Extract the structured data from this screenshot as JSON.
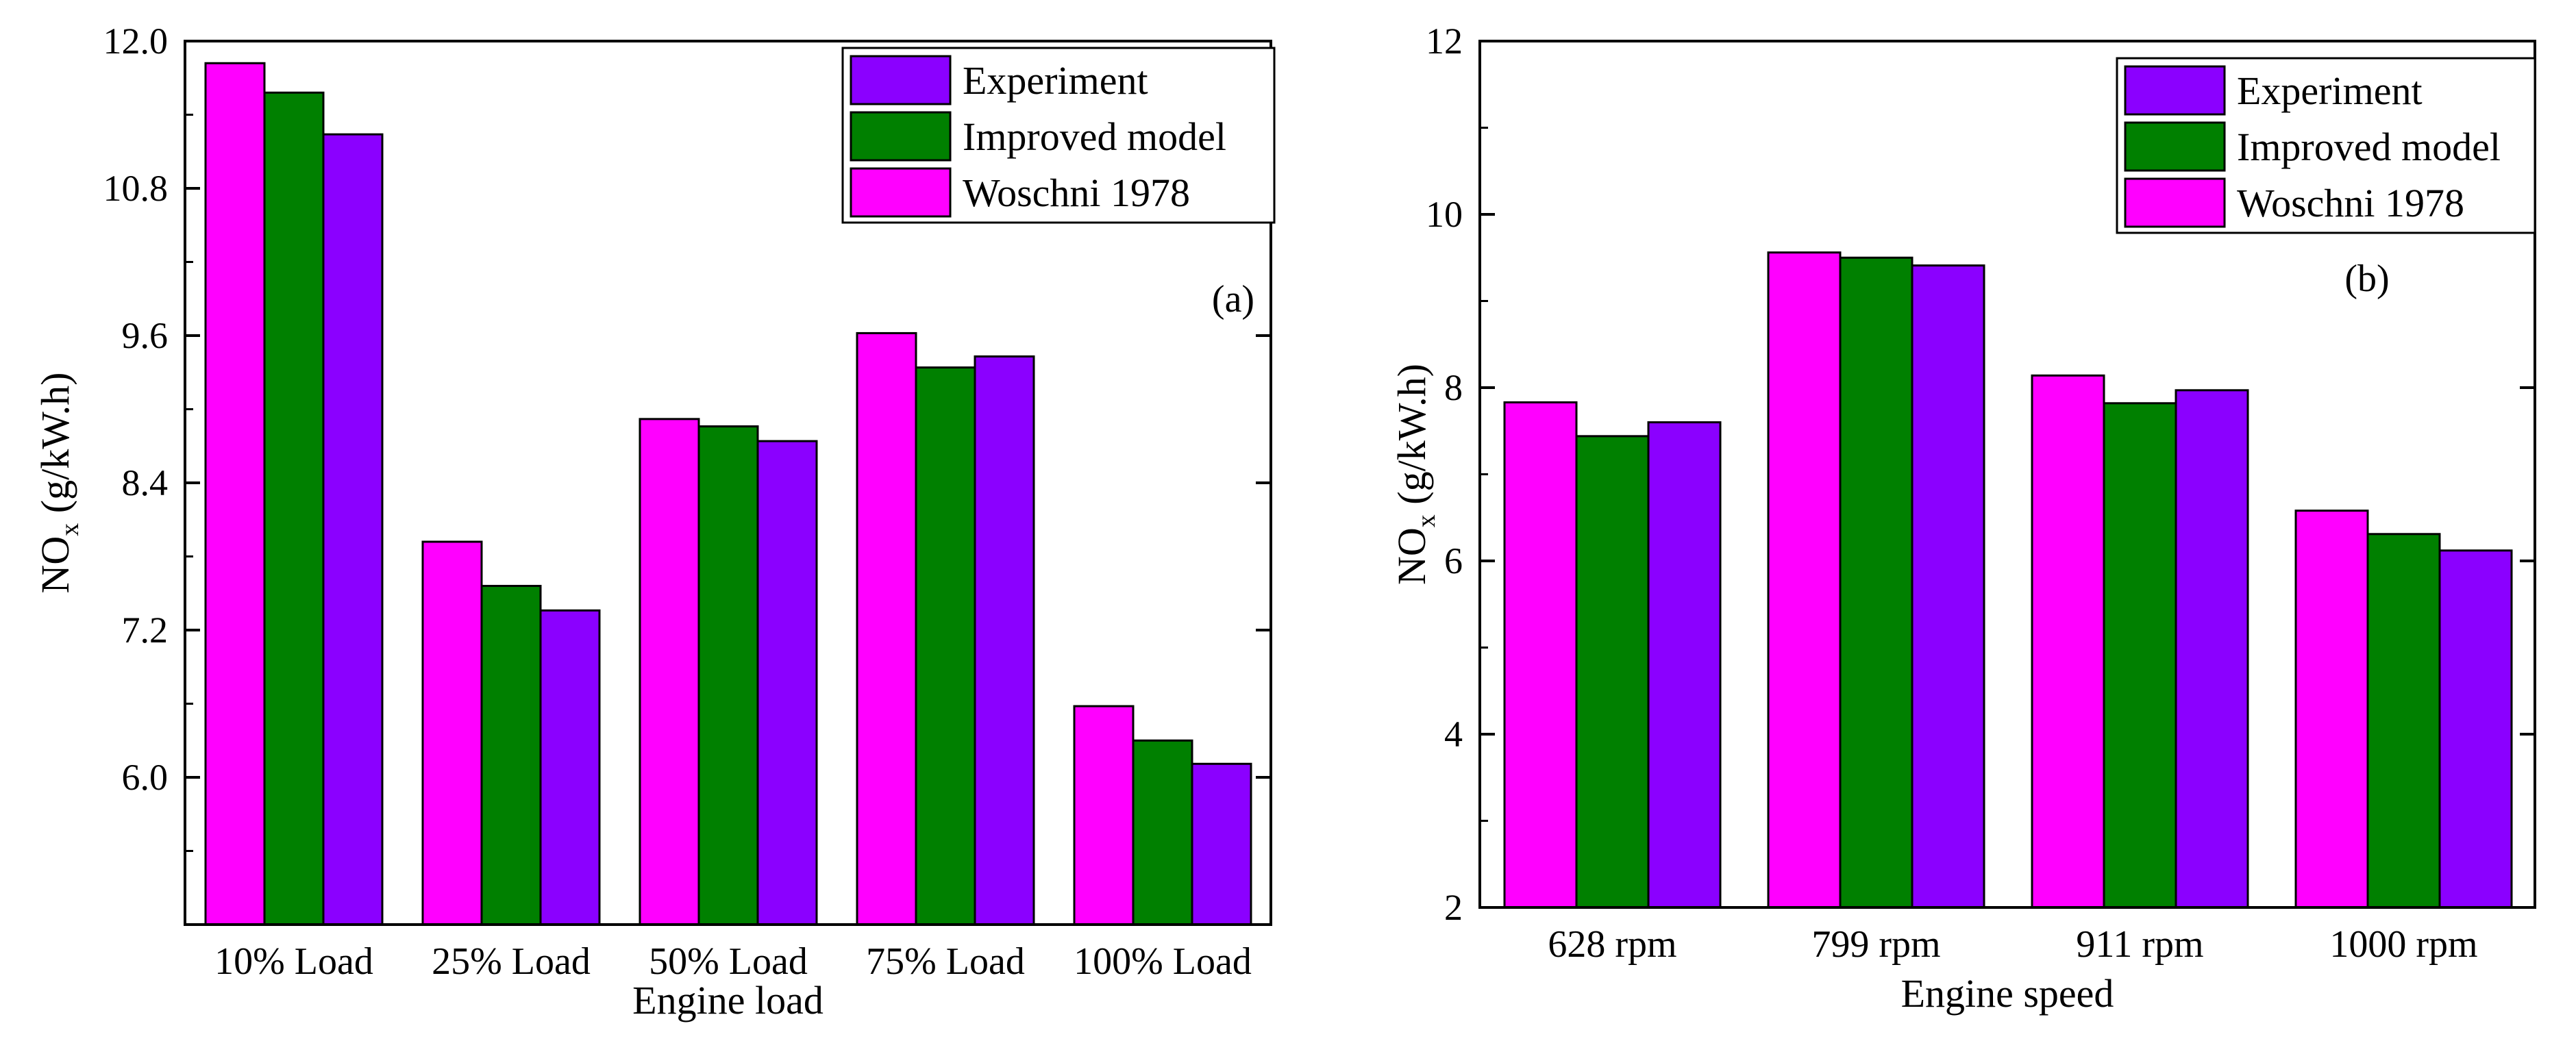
{
  "chart_data": [
    {
      "type": "bar",
      "panel_label": "(a)",
      "xlabel": "Engine load",
      "ylabel": "NOx (g/kW.h)",
      "ylabel_main": "NO",
      "ylabel_sub": "x",
      "ylabel_unit": " (g/kW.h)",
      "categories": [
        "10% Load",
        "25% Load",
        "50% Load",
        "75% Load",
        "100% Load"
      ],
      "ylim": [
        4.8,
        12.0
      ],
      "yticks": [
        "6.0",
        "7.2",
        "8.4",
        "9.6",
        "10.8",
        "12.0"
      ],
      "ytick_values": [
        6.0,
        7.2,
        8.4,
        9.6,
        10.8,
        12.0
      ],
      "grid": false,
      "legend_position": "top-right",
      "series": [
        {
          "name": "Woschni 1978",
          "values": [
            11.82,
            7.92,
            8.92,
            9.62,
            6.58
          ]
        },
        {
          "name": "Improved model",
          "values": [
            11.58,
            7.56,
            8.86,
            9.34,
            6.3
          ]
        },
        {
          "name": "Experiment",
          "values": [
            11.24,
            7.36,
            8.74,
            9.43,
            6.11
          ]
        }
      ],
      "legend_order": [
        "Experiment",
        "Improved model",
        "Woschni 1978"
      ]
    },
    {
      "type": "bar",
      "panel_label": "(b)",
      "xlabel": "Engine speed",
      "ylabel": "NOx (g/kW.h)",
      "ylabel_main": "NO",
      "ylabel_sub": "x",
      "ylabel_unit": " (g/kW.h)",
      "categories": [
        "628 rpm",
        "799 rpm",
        "911 rpm",
        "1000 rpm"
      ],
      "ylim": [
        2,
        12
      ],
      "yticks": [
        "2",
        "4",
        "6",
        "8",
        "10",
        "12"
      ],
      "ytick_values": [
        2,
        4,
        6,
        8,
        10,
        12
      ],
      "grid": false,
      "legend_position": "top-right",
      "series": [
        {
          "name": "Woschni 1978",
          "values": [
            7.83,
            9.56,
            8.14,
            6.58
          ]
        },
        {
          "name": "Improved model",
          "values": [
            7.44,
            9.5,
            7.82,
            6.31
          ]
        },
        {
          "name": "Experiment",
          "values": [
            7.6,
            9.41,
            7.97,
            6.12
          ]
        }
      ],
      "legend_order": [
        "Experiment",
        "Improved model",
        "Woschni 1978"
      ]
    }
  ],
  "colors": {
    "Woschni 1978": "#ff00ff",
    "Improved model": "#008000",
    "Experiment": "#8b00ff",
    "axis": "#000000"
  }
}
